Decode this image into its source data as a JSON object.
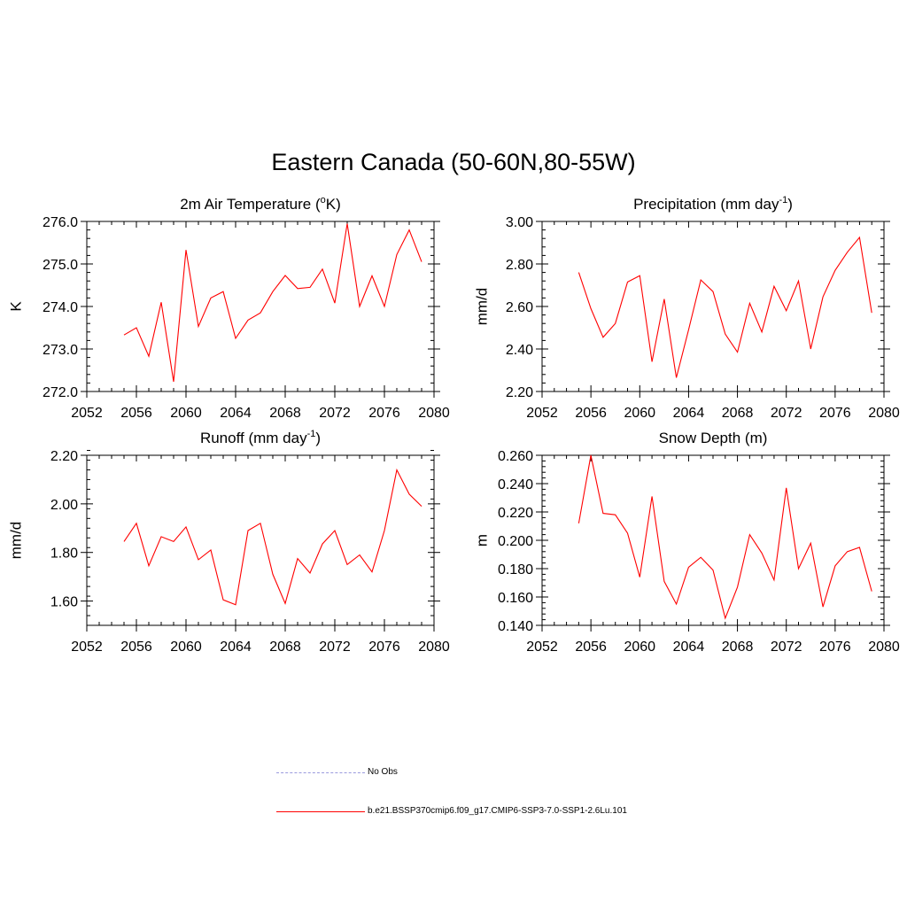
{
  "figure": {
    "title": "Eastern Canada (50-60N,80-55W)"
  },
  "chart_data": [
    {
      "type": "line",
      "title": "2m Air Temperature (°K)",
      "title_parts": {
        "pre": "2m Air Temperature (",
        "sup": "o",
        "post": "K)"
      },
      "ylabel": "K",
      "xlim": [
        2052,
        2080
      ],
      "ylim": [
        272.0,
        276.0
      ],
      "xticks": [
        2052,
        2056,
        2060,
        2064,
        2068,
        2072,
        2076,
        2080
      ],
      "yticks": [
        "272.0",
        "273.0",
        "274.0",
        "275.0",
        "276.0"
      ],
      "series": [
        {
          "name": "b.e21.BSSP370cmip6.f09_g17.CMIP6-SSP3-7.0-SSP1-2.6Lu.101",
          "color": "#ff0000",
          "x": [
            2055,
            2056,
            2057,
            2058,
            2059,
            2060,
            2061,
            2062,
            2063,
            2064,
            2065,
            2066,
            2067,
            2068,
            2069,
            2070,
            2071,
            2072,
            2073,
            2074,
            2075,
            2076,
            2077,
            2078,
            2079
          ],
          "y": [
            273.33,
            273.5,
            272.83,
            274.1,
            272.23,
            275.33,
            273.53,
            274.2,
            274.35,
            273.25,
            273.68,
            273.85,
            274.35,
            274.73,
            274.42,
            274.45,
            274.88,
            274.08,
            275.95,
            274.0,
            274.72,
            274.0,
            275.22,
            275.8,
            275.05
          ]
        }
      ]
    },
    {
      "type": "line",
      "title": "Precipitation (mm day-1)",
      "title_parts": {
        "pre": "Precipitation (mm day",
        "sup": "-1",
        "post": ")"
      },
      "ylabel": "mm/d",
      "xlim": [
        2052,
        2080
      ],
      "ylim": [
        2.2,
        3.0
      ],
      "xticks": [
        2052,
        2056,
        2060,
        2064,
        2068,
        2072,
        2076,
        2080
      ],
      "yticks": [
        "2.20",
        "2.40",
        "2.60",
        "2.80",
        "3.00"
      ],
      "series": [
        {
          "name": "b.e21.BSSP370cmip6.f09_g17.CMIP6-SSP3-7.0-SSP1-2.6Lu.101",
          "color": "#ff0000",
          "x": [
            2055,
            2056,
            2057,
            2058,
            2059,
            2060,
            2061,
            2062,
            2063,
            2064,
            2065,
            2066,
            2067,
            2068,
            2069,
            2070,
            2071,
            2072,
            2073,
            2074,
            2075,
            2076,
            2077,
            2078,
            2079
          ],
          "y": [
            2.76,
            2.59,
            2.455,
            2.52,
            2.715,
            2.745,
            2.34,
            2.635,
            2.265,
            2.49,
            2.725,
            2.67,
            2.47,
            2.385,
            2.615,
            2.48,
            2.695,
            2.58,
            2.72,
            2.4,
            2.645,
            2.77,
            2.855,
            2.925,
            2.57
          ]
        }
      ]
    },
    {
      "type": "line",
      "title": "Runoff (mm day-1)",
      "title_parts": {
        "pre": "Runoff (mm day",
        "sup": "-1",
        "post": ")"
      },
      "ylabel": "mm/d",
      "xlim": [
        2052,
        2080
      ],
      "ylim": [
        1.5,
        2.2
      ],
      "xticks": [
        2052,
        2056,
        2060,
        2064,
        2068,
        2072,
        2076,
        2080
      ],
      "yticks": [
        "1.60",
        "1.80",
        "2.00",
        "2.20"
      ],
      "series": [
        {
          "name": "b.e21.BSSP370cmip6.f09_g17.CMIP6-SSP3-7.0-SSP1-2.6Lu.101",
          "color": "#ff0000",
          "x": [
            2055,
            2056,
            2057,
            2058,
            2059,
            2060,
            2061,
            2062,
            2063,
            2064,
            2065,
            2066,
            2067,
            2068,
            2069,
            2070,
            2071,
            2072,
            2073,
            2074,
            2075,
            2076,
            2077,
            2078,
            2079
          ],
          "y": [
            1.845,
            1.92,
            1.745,
            1.865,
            1.845,
            1.905,
            1.77,
            1.81,
            1.605,
            1.585,
            1.89,
            1.92,
            1.71,
            1.59,
            1.775,
            1.715,
            1.835,
            1.89,
            1.75,
            1.79,
            1.72,
            1.89,
            2.14,
            2.04,
            1.99
          ]
        }
      ]
    },
    {
      "type": "line",
      "title": "Snow Depth (m)",
      "title_parts": {
        "pre": "Snow Depth (m)",
        "sup": "",
        "post": ""
      },
      "ylabel": "m",
      "xlim": [
        2052,
        2080
      ],
      "ylim": [
        0.14,
        0.26
      ],
      "xticks": [
        2052,
        2056,
        2060,
        2064,
        2068,
        2072,
        2076,
        2080
      ],
      "yticks": [
        "0.140",
        "0.160",
        "0.180",
        "0.200",
        "0.220",
        "0.240",
        "0.260"
      ],
      "series": [
        {
          "name": "b.e21.BSSP370cmip6.f09_g17.CMIP6-SSP3-7.0-SSP1-2.6Lu.101",
          "color": "#ff0000",
          "x": [
            2055,
            2056,
            2057,
            2058,
            2059,
            2060,
            2061,
            2062,
            2063,
            2064,
            2065,
            2066,
            2067,
            2068,
            2069,
            2070,
            2071,
            2072,
            2073,
            2074,
            2075,
            2076,
            2077,
            2078,
            2079
          ],
          "y": [
            0.212,
            0.26,
            0.219,
            0.218,
            0.205,
            0.174,
            0.231,
            0.171,
            0.155,
            0.181,
            0.188,
            0.179,
            0.145,
            0.167,
            0.204,
            0.191,
            0.172,
            0.237,
            0.18,
            0.198,
            0.153,
            0.182,
            0.192,
            0.195,
            0.164
          ]
        }
      ]
    }
  ],
  "legend": {
    "items": [
      {
        "label": "No Obs",
        "color": "#9999dd",
        "style": "dashed"
      },
      {
        "label": "b.e21.BSSP370cmip6.f09_g17.CMIP6-SSP3-7.0-SSP1-2.6Lu.101",
        "color": "#ff0000",
        "style": "solid"
      }
    ]
  }
}
